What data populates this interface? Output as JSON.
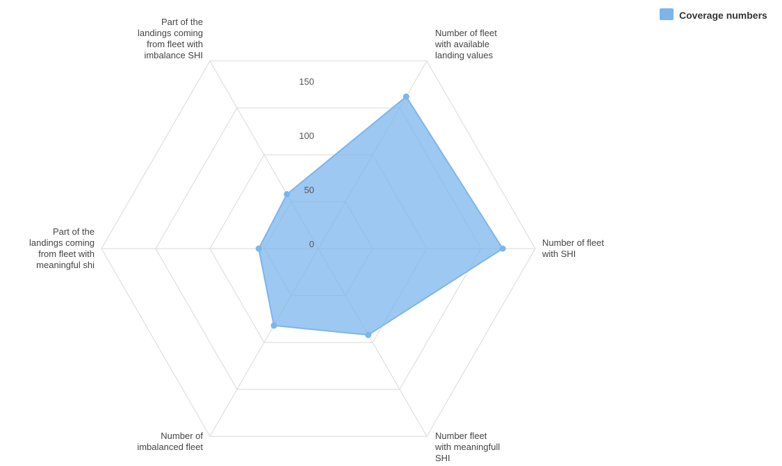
{
  "chart_data": {
    "type": "radar",
    "categories": [
      "Number of fleet with available landing values",
      "Number of fleet with SHI",
      "Number fleet with meaningfull SHI",
      "Number of imbalanced fleet",
      "Part of the landings coming from fleet with meaningful shi",
      "Part of the landings coming from fleet with imbalance SHI"
    ],
    "category_label_lines": [
      [
        "Number of fleet",
        "with available",
        "landing values"
      ],
      [
        "Number of fleet",
        "with SHI"
      ],
      [
        "Number fleet",
        "with meaningfull",
        "SHI"
      ],
      [
        "Number of",
        "imbalanced fleet"
      ],
      [
        "Part of the",
        "landings coming",
        "from fleet with",
        "meaningful shi"
      ],
      [
        "Part of the",
        "landings coming",
        "from fleet with",
        "imbalance SHI"
      ]
    ],
    "series": [
      {
        "name": "Coverage numbers",
        "values": [
          162,
          170,
          92,
          82,
          55,
          58
        ]
      }
    ],
    "y_ticks": [
      0,
      50,
      100,
      150
    ],
    "y_tick_labels": [
      "0",
      "50",
      "100",
      "150"
    ],
    "ylim": [
      0,
      200
    ],
    "grid": true,
    "legend_position": "top-right",
    "colors": {
      "series_fill": "#7cb5ec",
      "series_stroke": "#7cb5ec",
      "grid": "#d9d9d9"
    }
  }
}
